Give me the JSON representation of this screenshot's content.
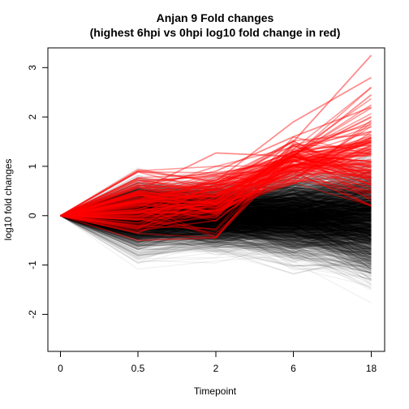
{
  "chart_data": {
    "type": "line",
    "title": "Anjan 9 Fold changes",
    "subtitle": "(highest 6hpi vs 0hpi log10 fold change in red)",
    "xlabel": "Timepoint",
    "ylabel": "log10 fold changes",
    "x_categories": [
      "0",
      "0.5",
      "2",
      "6",
      "18"
    ],
    "y_ticks": [
      -2,
      -1,
      0,
      1,
      2,
      3
    ],
    "ylim": [
      -2.75,
      3.4
    ],
    "grid": false,
    "legend": "none",
    "background_series": {
      "color": "#000000",
      "count": 1800,
      "envelope_upper": [
        0,
        1.1,
        1.0,
        0.9,
        1.3
      ],
      "envelope_lower": [
        0,
        -1.5,
        -1.2,
        -1.4,
        -2.5
      ]
    },
    "highlighted_series": {
      "color": "#ff0000",
      "count": 120,
      "representative_lines": [
        [
          0,
          0.5,
          0.6,
          1.5,
          3.25
        ],
        [
          0,
          0.9,
          0.7,
          1.9,
          2.8
        ],
        [
          0,
          0.5,
          1.27,
          1.2,
          2.45
        ],
        [
          0,
          0.3,
          0.4,
          1.3,
          1.9
        ],
        [
          0,
          -0.3,
          -0.1,
          1.1,
          1.5
        ],
        [
          0,
          0.6,
          0.9,
          1.6,
          2.2
        ],
        [
          0,
          0.1,
          0.3,
          1.2,
          1.0
        ],
        [
          0,
          -0.5,
          -0.45,
          1.3,
          0.3
        ],
        [
          0,
          0.2,
          0.2,
          0.9,
          1.3
        ],
        [
          0,
          0.7,
          0.8,
          1.0,
          0.9
        ]
      ]
    }
  }
}
